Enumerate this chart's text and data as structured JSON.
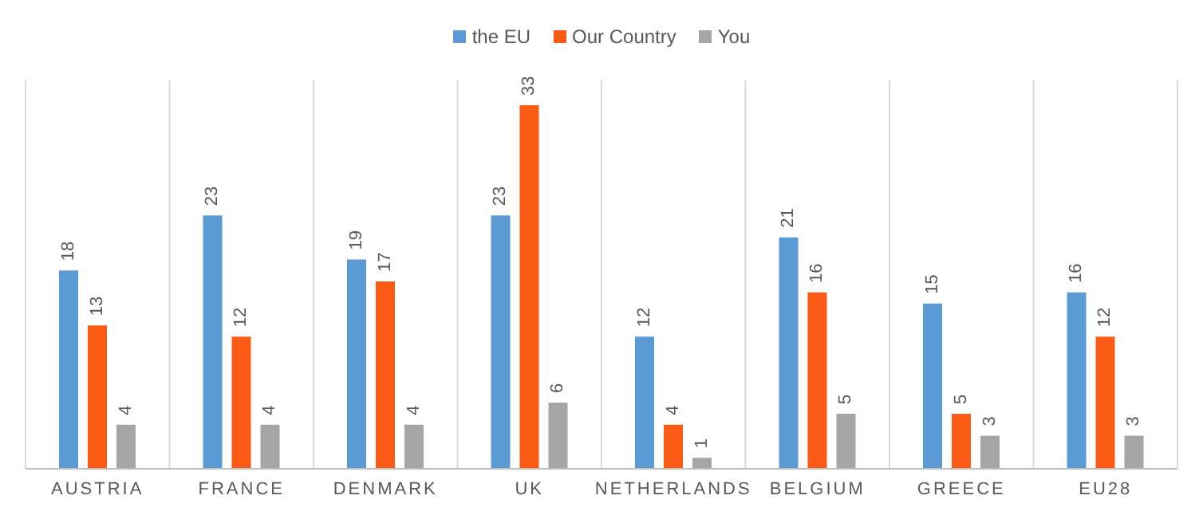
{
  "chart_data": {
    "type": "bar",
    "categories": [
      "AUSTRIA",
      "FRANCE",
      "DENMARK",
      "UK",
      "NETHERLANDS",
      "BELGIUM",
      "GREECE",
      "EU28"
    ],
    "series": [
      {
        "name": "the EU",
        "color": "#5b9bd5",
        "values": [
          18,
          23,
          19,
          23,
          12,
          21,
          15,
          16
        ]
      },
      {
        "name": "Our Country",
        "color": "#fa5a14",
        "values": [
          13,
          12,
          17,
          33,
          4,
          16,
          5,
          12
        ]
      },
      {
        "name": "You",
        "color": "#a5a5a5",
        "values": [
          4,
          4,
          4,
          6,
          1,
          5,
          3,
          3
        ]
      }
    ],
    "data_labels": true,
    "legend": "top",
    "grid": "x",
    "tick_labels": "x"
  }
}
